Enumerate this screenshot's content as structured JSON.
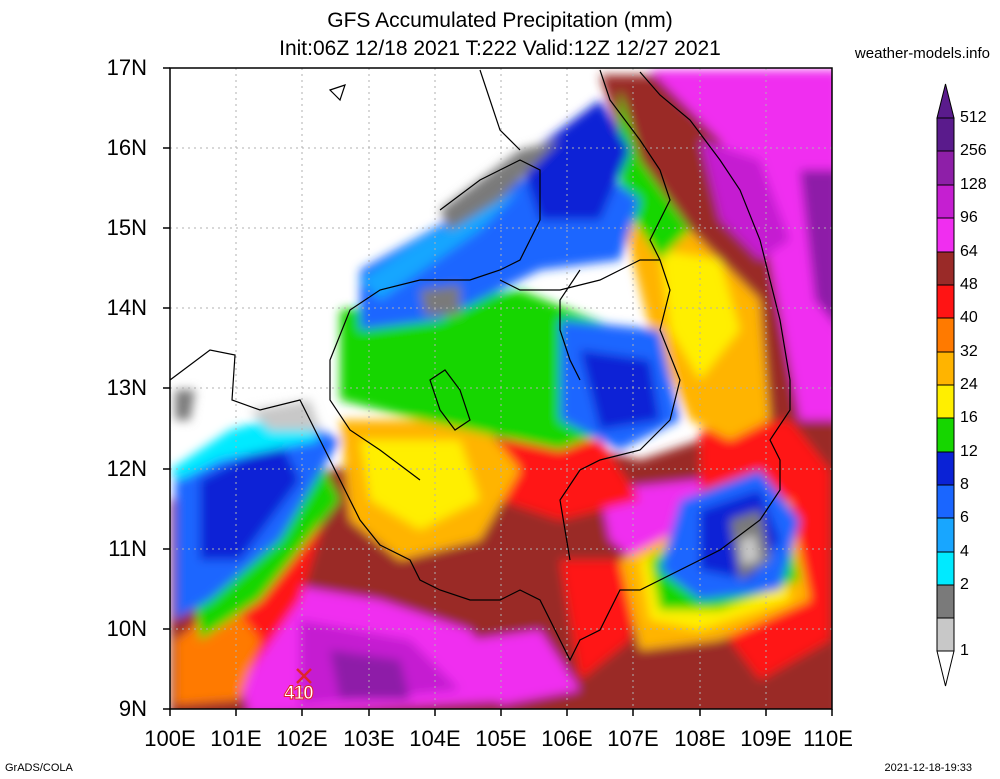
{
  "title_line1": "GFS Accumulated Precipitation (mm)",
  "title_line2": "Init:06Z 12/18 2021 T:222 Valid:12Z 12/27 2021",
  "site": "weather-models.info",
  "footer_left": "GrADS/COLA",
  "footer_right": "2021-12-18-19:33",
  "y_labels": [
    "17N",
    "16N",
    "15N",
    "14N",
    "13N",
    "12N",
    "11N",
    "10N",
    "9N"
  ],
  "x_labels": [
    "100E",
    "101E",
    "102E",
    "103E",
    "104E",
    "105E",
    "106E",
    "107E",
    "108E",
    "109E",
    "110E"
  ],
  "colorbar": {
    "labels": [
      "512",
      "256",
      "128",
      "96",
      "64",
      "48",
      "40",
      "32",
      "24",
      "16",
      "12",
      "8",
      "6",
      "4",
      "2",
      "1"
    ],
    "colors": {
      "c512": "#5a1b8c",
      "c256": "#8e1fa8",
      "c128": "#c51fd1",
      "c96": "#f02ef0",
      "c64": "#9a2a28",
      "c48": "#ff1414",
      "c40": "#ff7a00",
      "c32": "#ffb400",
      "c24": "#ffef00",
      "c16": "#16d600",
      "c12": "#0a22d6",
      "c8": "#1a66ff",
      "c6": "#18a6ff",
      "c4": "#00eaff",
      "c2": "#7a7a7a",
      "c1": "#c8c8c8"
    }
  },
  "marker": {
    "value": "410",
    "icon": "x-mark-icon"
  }
}
